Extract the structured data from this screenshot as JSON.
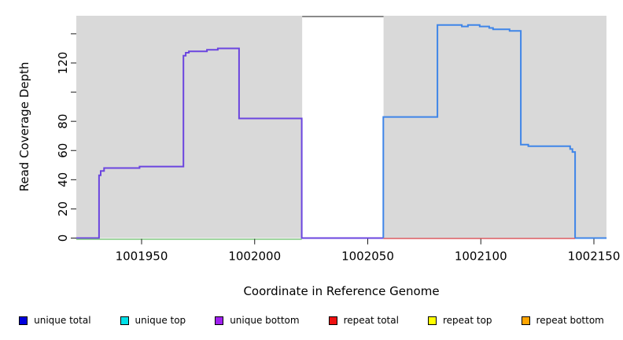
{
  "chart_data": {
    "type": "line",
    "subtype": "step-coverage",
    "title": "",
    "xlabel": "Coordinate in Reference Genome",
    "ylabel": "Read Coverage Depth",
    "x_range": [
      1001921,
      1002156
    ],
    "y_range": [
      0,
      152
    ],
    "grid": false,
    "panel_bg": "#d9d9d9",
    "tick_color": "#1a1a1a",
    "x_ticks": [
      {
        "v": 1001950,
        "label": "1001950"
      },
      {
        "v": 1002000,
        "label": "1002000"
      },
      {
        "v": 1002050,
        "label": "1002050"
      },
      {
        "v": 1002100,
        "label": "1002100"
      },
      {
        "v": 1002150,
        "label": "1002150"
      }
    ],
    "y_ticks": [
      {
        "v": 0,
        "label": "0"
      },
      {
        "v": 20,
        "label": "20"
      },
      {
        "v": 40,
        "label": "40"
      },
      {
        "v": 60,
        "label": "60"
      },
      {
        "v": 80,
        "label": "80"
      },
      {
        "v": 100,
        "label": ""
      },
      {
        "v": 120,
        "label": "120"
      },
      {
        "v": 140,
        "label": ""
      }
    ],
    "masked_region": {
      "x_start": 1002021,
      "x_end": 1002057,
      "fill": "#ffffff",
      "top_line_color": "#8a8a8a"
    },
    "series": [
      {
        "name": "unique-bottom-coverage",
        "color": "#6b45df",
        "width": 2,
        "points": [
          [
            1001921.1,
            0
          ],
          [
            1001931.2,
            0
          ],
          [
            1001931.2,
            43
          ],
          [
            1001931.9,
            43
          ],
          [
            1001931.9,
            46
          ],
          [
            1001933.4,
            46
          ],
          [
            1001933.4,
            48
          ],
          [
            1001949.1,
            48
          ],
          [
            1001949.1,
            49
          ],
          [
            1001968.5,
            49
          ],
          [
            1001968.5,
            125
          ],
          [
            1001969.5,
            125
          ],
          [
            1001969.5,
            127
          ],
          [
            1001970.9,
            127
          ],
          [
            1001970.9,
            128
          ],
          [
            1001978.9,
            128
          ],
          [
            1001978.9,
            129
          ],
          [
            1001983.7,
            129
          ],
          [
            1001983.7,
            130
          ],
          [
            1001993.1,
            130
          ],
          [
            1001993.1,
            82
          ],
          [
            1002020.8,
            82
          ],
          [
            1002020.8,
            0
          ],
          [
            1002056.9,
            0
          ]
        ]
      },
      {
        "name": "unique-total-coverage",
        "color": "#3f85e8",
        "width": 2,
        "points": [
          [
            1002056.9,
            0
          ],
          [
            1002056.9,
            83
          ],
          [
            1002080.8,
            83
          ],
          [
            1002080.8,
            146
          ],
          [
            1002091.6,
            146
          ],
          [
            1002091.6,
            145
          ],
          [
            1002094.3,
            145
          ],
          [
            1002094.3,
            146
          ],
          [
            1002099.5,
            146
          ],
          [
            1002099.5,
            145
          ],
          [
            1002103.7,
            145
          ],
          [
            1002103.7,
            144
          ],
          [
            1002105.4,
            144
          ],
          [
            1002105.4,
            143
          ],
          [
            1002112.7,
            143
          ],
          [
            1002112.7,
            142
          ],
          [
            1002117.7,
            142
          ],
          [
            1002117.7,
            64
          ],
          [
            1002121.0,
            64
          ],
          [
            1002121.0,
            63
          ],
          [
            1002139.5,
            63
          ],
          [
            1002139.5,
            61
          ],
          [
            1002140.5,
            61
          ],
          [
            1002140.5,
            59
          ],
          [
            1002141.7,
            59
          ],
          [
            1002141.7,
            0
          ],
          [
            1002155.6,
            0
          ]
        ]
      },
      {
        "name": "zero-baseline-left-green",
        "color": "#80c880",
        "width": 1.5,
        "py_offset": 1.5,
        "points": [
          [
            1001921.1,
            0
          ],
          [
            1002020.8,
            0
          ]
        ]
      },
      {
        "name": "zero-baseline-right-red",
        "color": "#dd5c62",
        "width": 1.5,
        "py_offset": 0.5,
        "points": [
          [
            1002056.9,
            0
          ],
          [
            1002141.7,
            0
          ]
        ]
      }
    ],
    "legend": {
      "position": "bottom",
      "entries": [
        {
          "label": "unique total",
          "color": "#0000dd"
        },
        {
          "label": "unique top",
          "color": "#00e0e8"
        },
        {
          "label": "unique bottom",
          "color": "#a020f0"
        },
        {
          "label": "repeat total",
          "color": "#ee1111"
        },
        {
          "label": "repeat top",
          "color": "#ffff00"
        },
        {
          "label": "repeat bottom",
          "color": "#ffa500"
        }
      ]
    }
  }
}
